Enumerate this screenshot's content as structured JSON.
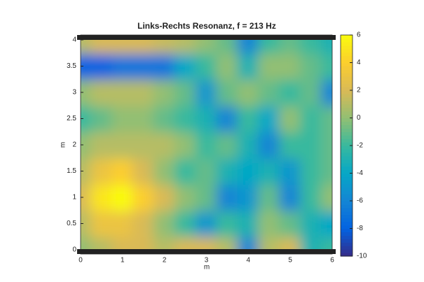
{
  "chart_data": {
    "type": "heatmap",
    "title": "Links-Rechts Resonanz, f = 213 Hz",
    "x_label": "m",
    "y_label": "m",
    "x": [
      0,
      0.5,
      1,
      1.5,
      2,
      2.5,
      3,
      3.5,
      4,
      4.5,
      5,
      5.5,
      6
    ],
    "y": [
      0,
      0.5,
      1,
      1.5,
      2,
      2.5,
      3,
      3.5,
      4
    ],
    "z": [
      [
        0,
        1,
        2,
        2,
        1,
        2,
        2,
        1,
        -6,
        1,
        2,
        -3,
        -2
      ],
      [
        1,
        3,
        3,
        2,
        0,
        -2,
        -5,
        -2,
        -3,
        0,
        -1,
        -3,
        -4
      ],
      [
        2,
        5,
        6,
        4,
        2,
        0,
        -1,
        -6,
        -5,
        -1,
        -6,
        -2,
        0
      ],
      [
        1,
        3,
        4,
        2,
        0,
        -2,
        -1,
        -3,
        -4,
        -3,
        -5,
        -2,
        -1
      ],
      [
        0,
        1,
        1,
        1,
        1,
        0,
        -2,
        -1,
        -3,
        -6,
        -2,
        -2,
        -1
      ],
      [
        -2,
        -1,
        0,
        0,
        -1,
        -2,
        -3,
        -6,
        -2,
        -4,
        0,
        -2,
        -1
      ],
      [
        0,
        1,
        1,
        1,
        0,
        -1,
        -5,
        -1,
        0,
        -1,
        -2,
        -1,
        -6
      ],
      [
        -8,
        -8,
        -7,
        -7,
        -7,
        -4,
        -2,
        0,
        -3,
        0,
        0,
        -1,
        -2
      ],
      [
        1,
        2,
        2,
        2,
        1.5,
        1,
        0,
        -1,
        -6,
        -2,
        -1,
        -2,
        -3
      ]
    ],
    "xlim": [
      0,
      6
    ],
    "ylim": [
      0,
      4
    ],
    "xticks": [
      0,
      1,
      2,
      3,
      4,
      5,
      6
    ],
    "yticks": [
      0,
      0.5,
      1,
      1.5,
      2,
      2.5,
      3,
      3.5,
      4
    ],
    "clim": [
      -10,
      6
    ],
    "cticks": [
      -10,
      -8,
      -6,
      -4,
      -2,
      0,
      2,
      4,
      6
    ],
    "colormap": [
      "#352A87",
      "#0363E1",
      "#1485D4",
      "#06A7C6",
      "#38B99E",
      "#92BF73",
      "#D9BA56",
      "#FCCE2E",
      "#F9FB0E"
    ]
  }
}
